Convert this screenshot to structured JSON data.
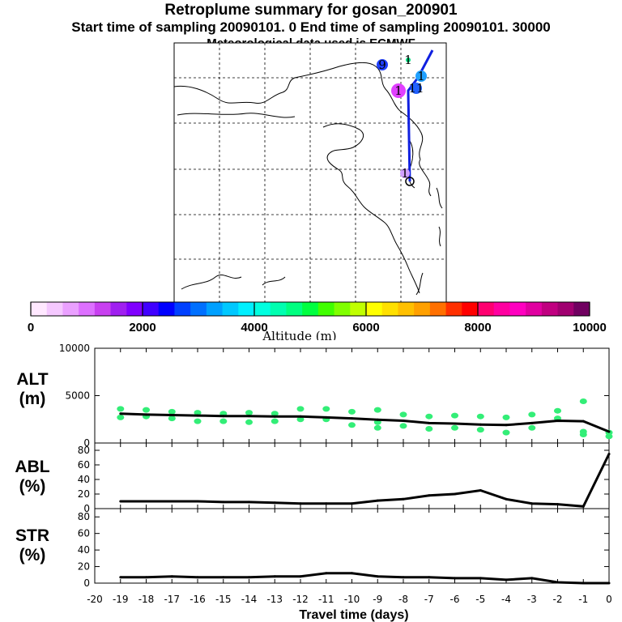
{
  "title": "Retroplume summary for gosan_200901",
  "subtitle": "Start time of sampling 20090101.    0    End time of sampling 20090101. 30000",
  "met_line": "Meteorological data used is ECMWF",
  "map": {
    "markers": [
      {
        "label": "9",
        "color": "#2040ff"
      },
      {
        "label": "1",
        "color": "#00e080"
      },
      {
        "label": "1",
        "color": "#20a0ff"
      },
      {
        "label": "1",
        "color": "#e040ff"
      },
      {
        "label": "11",
        "color": "#2060ff"
      },
      {
        "label": "1",
        "color": "#d0a0ff"
      }
    ]
  },
  "colorbar": {
    "ticks": [
      "0",
      "2000",
      "4000",
      "6000",
      "8000",
      "10000"
    ],
    "label": "Altitude (m)",
    "colors": [
      "#ffe8ff",
      "#f5c8ff",
      "#eaa0ff",
      "#dd70ff",
      "#c840f0",
      "#a020f0",
      "#8000ff",
      "#4000ff",
      "#0000ff",
      "#0040ff",
      "#0070ff",
      "#00a0ff",
      "#00c8ff",
      "#00f0ff",
      "#00ffe0",
      "#00ffb0",
      "#00ff80",
      "#00ff40",
      "#40ff00",
      "#80ff00",
      "#c0ff00",
      "#ffff00",
      "#ffe000",
      "#ffc000",
      "#ffa000",
      "#ff7000",
      "#ff3000",
      "#ff0000",
      "#ff0070",
      "#ff00a0",
      "#ff00c0",
      "#e000a0",
      "#c00080",
      "#a00070",
      "#700060"
    ]
  },
  "chart_data": [
    {
      "type": "line",
      "panel": "ALT",
      "ylabel": "ALT\n(m)",
      "ylabel_lines": [
        "ALT",
        "(m)"
      ],
      "xlabel": "Travel time (days)",
      "xlim": [
        -20,
        0
      ],
      "ylim": [
        0,
        10000
      ],
      "yticks": [
        "0",
        "5000",
        "10000"
      ],
      "x": [
        -19,
        -18,
        -17,
        -16,
        -15,
        -14,
        -13,
        -12,
        -11,
        -10,
        -9,
        -8,
        -7,
        -6,
        -5,
        -4,
        -3,
        -2,
        -1,
        0
      ],
      "values": [
        3100,
        3000,
        2950,
        2900,
        2850,
        2850,
        2800,
        2800,
        2700,
        2600,
        2450,
        2350,
        2100,
        2050,
        1950,
        1900,
        2100,
        2350,
        2300,
        1200
      ],
      "scatter_color": "#33ee77",
      "scatter": [
        [
          -19,
          3600
        ],
        [
          -19,
          2700
        ],
        [
          -18,
          3500
        ],
        [
          -18,
          2800
        ],
        [
          -17,
          3300
        ],
        [
          -17,
          2600
        ],
        [
          -16,
          3200
        ],
        [
          -16,
          2300
        ],
        [
          -15,
          3100
        ],
        [
          -15,
          2300
        ],
        [
          -14,
          3200
        ],
        [
          -14,
          2200
        ],
        [
          -13,
          3100
        ],
        [
          -13,
          2300
        ],
        [
          -12,
          3600
        ],
        [
          -12,
          2500
        ],
        [
          -11,
          3600
        ],
        [
          -11,
          2500
        ],
        [
          -10,
          3300
        ],
        [
          -10,
          1900
        ],
        [
          -9,
          3500
        ],
        [
          -9,
          2200
        ],
        [
          -9,
          1600
        ],
        [
          -8,
          3000
        ],
        [
          -8,
          1800
        ],
        [
          -7,
          2800
        ],
        [
          -7,
          1500
        ],
        [
          -6,
          2900
        ],
        [
          -6,
          1600
        ],
        [
          -5,
          2800
        ],
        [
          -5,
          1400
        ],
        [
          -4,
          2700
        ],
        [
          -4,
          1100
        ],
        [
          -3,
          3000
        ],
        [
          -3,
          1600
        ],
        [
          -2,
          3400
        ],
        [
          -2,
          2600
        ],
        [
          -1,
          4400
        ],
        [
          -1,
          1200
        ],
        [
          -1,
          900
        ],
        [
          0,
          1100
        ],
        [
          0,
          700
        ]
      ]
    },
    {
      "type": "line",
      "panel": "ABL",
      "ylabel": "ABL\n(%)",
      "ylabel_lines": [
        "ABL",
        "(%)"
      ],
      "xlim": [
        -20,
        0
      ],
      "ylim": [
        0,
        90
      ],
      "yticks": [
        "0",
        "20",
        "40",
        "60",
        "80"
      ],
      "x": [
        -19,
        -18,
        -17,
        -16,
        -15,
        -14,
        -13,
        -12,
        -11,
        -10,
        -9,
        -8,
        -7,
        -6,
        -5,
        -4,
        -3,
        -2,
        -1,
        0
      ],
      "values": [
        10,
        10,
        10,
        10,
        9,
        9,
        8,
        7,
        7,
        7,
        11,
        13,
        18,
        20,
        25,
        13,
        7,
        6,
        3,
        75
      ]
    },
    {
      "type": "line",
      "panel": "STR",
      "ylabel": "STR\n(%)",
      "ylabel_lines": [
        "STR",
        "(%)"
      ],
      "xlim": [
        -20,
        0
      ],
      "ylim": [
        0,
        90
      ],
      "yticks": [
        "0",
        "20",
        "40",
        "60",
        "80"
      ],
      "xticks": [
        "-20",
        "-19",
        "-18",
        "-17",
        "-16",
        "-15",
        "-14",
        "-13",
        "-12",
        "-11",
        "-10",
        "-9",
        "-8",
        "-7",
        "-6",
        "-5",
        "-4",
        "-3",
        "-2",
        "-1",
        "0"
      ],
      "x": [
        -19,
        -18,
        -17,
        -16,
        -15,
        -14,
        -13,
        -12,
        -11,
        -10,
        -9,
        -8,
        -7,
        -6,
        -5,
        -4,
        -3,
        -2,
        -1,
        0
      ],
      "values": [
        7,
        7,
        8,
        7,
        7,
        7,
        8,
        8,
        12,
        12,
        8,
        7,
        7,
        6,
        6,
        4,
        6,
        1,
        0,
        0
      ]
    }
  ]
}
